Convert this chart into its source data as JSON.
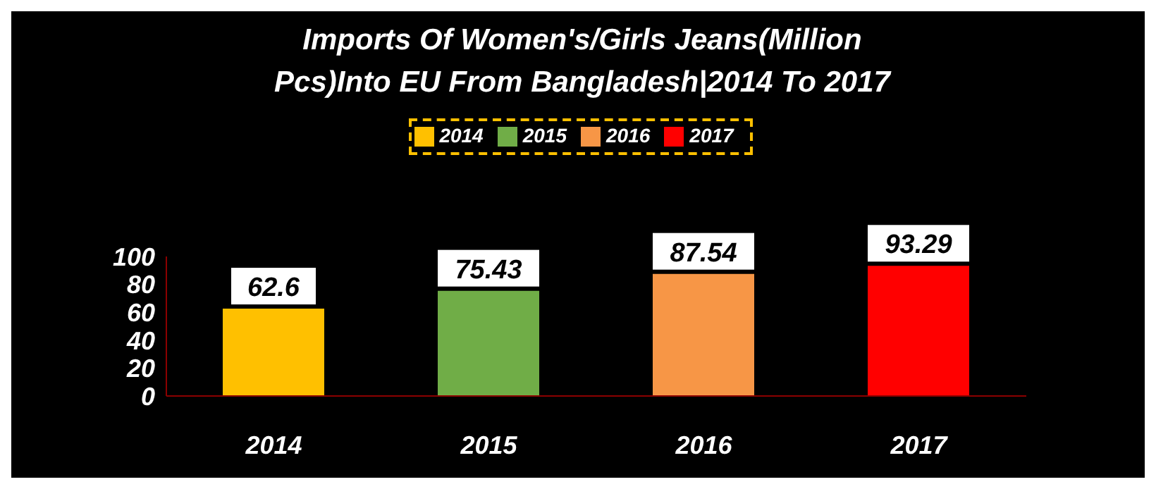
{
  "chart_data": {
    "type": "bar",
    "title": "Imports Of Women's/Girls Jeans(Million Pcs)Into EU From Bangladesh|2014 To 2017",
    "categories": [
      "2014",
      "2015",
      "2016",
      "2017"
    ],
    "series": [
      {
        "name": "2014",
        "color": "#ffc000",
        "values": [
          62.6,
          null,
          null,
          null
        ]
      },
      {
        "name": "2015",
        "color": "#70ad47",
        "values": [
          null,
          75.43,
          null,
          null
        ]
      },
      {
        "name": "2016",
        "color": "#f79646",
        "values": [
          null,
          null,
          87.54,
          null
        ]
      },
      {
        "name": "2017",
        "color": "#ff0000",
        "values": [
          null,
          null,
          null,
          93.29
        ]
      }
    ],
    "stacked": true,
    "ylim": [
      0,
      100
    ],
    "yticks": [
      0,
      20,
      40,
      60,
      80,
      100
    ],
    "grid": false,
    "legend": "top",
    "data_labels": true
  }
}
